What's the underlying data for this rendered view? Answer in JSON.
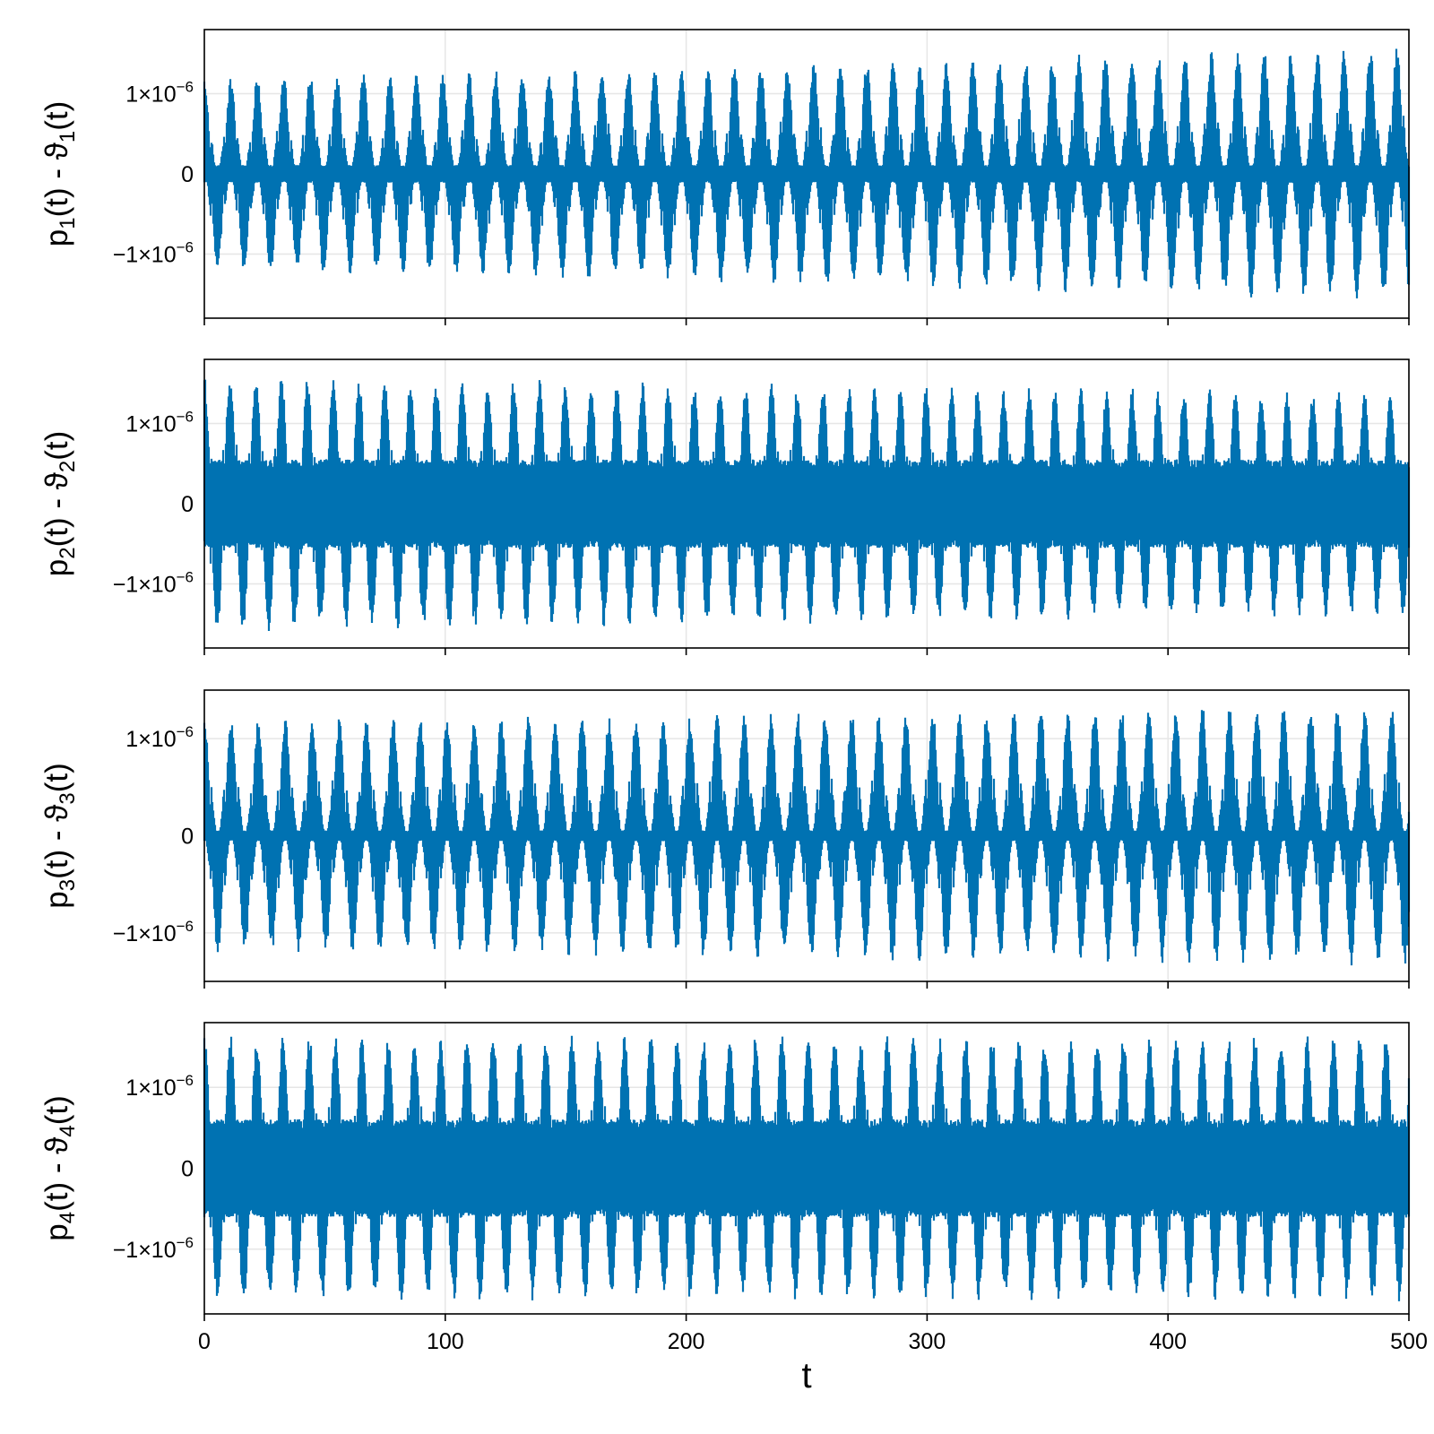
{
  "figure": {
    "background": "#ffffff",
    "line_color": "#0072b2",
    "grid_color": "#e6e6e6"
  },
  "chart_data": [
    {
      "type": "line",
      "ylabel_parts": [
        "p",
        "1",
        "(t) - ϑ",
        "1",
        "(t)"
      ],
      "xlabel": "",
      "x": [
        0,
        500
      ],
      "xlim": [
        0,
        500
      ],
      "ylim": [
        -1.8e-06,
        1.8e-06
      ],
      "xticks": [
        0,
        100,
        200,
        300,
        400,
        500
      ],
      "xtick_labels": [
        "",
        "",
        "",
        "",
        "",
        ""
      ],
      "yticks": [
        -1e-06,
        0,
        1e-06
      ],
      "ytick_labels": [
        {
          "base": "−1×10",
          "exp": "−6"
        },
        {
          "base": "0",
          "exp": ""
        },
        {
          "base": "1×10",
          "exp": "−6"
        }
      ],
      "grid": true,
      "series": [
        {
          "envelope_min_start": -1.2e-06,
          "envelope_max_start": 1.2e-06,
          "envelope_min_end": -1.6e-06,
          "envelope_max_end": 1.6e-06,
          "beat_period": 11.0,
          "inner_min": -1e-07,
          "inner_max": 1e-07
        }
      ]
    },
    {
      "type": "line",
      "ylabel_parts": [
        "p",
        "2",
        "(t) - ϑ",
        "2",
        "(t)"
      ],
      "xlabel": "",
      "x": [
        0,
        500
      ],
      "xlim": [
        0,
        500
      ],
      "ylim": [
        -1.8e-06,
        1.8e-06
      ],
      "xticks": [
        0,
        100,
        200,
        300,
        400,
        500
      ],
      "xtick_labels": [
        "",
        "",
        "",
        "",
        "",
        ""
      ],
      "yticks": [
        -1e-06,
        0,
        1e-06
      ],
      "ytick_labels": [
        {
          "base": "−1×10",
          "exp": "−6"
        },
        {
          "base": "0",
          "exp": ""
        },
        {
          "base": "1×10",
          "exp": "−6"
        }
      ],
      "grid": true,
      "series": [
        {
          "envelope_min_start": -1.6e-06,
          "envelope_max_start": 1.6e-06,
          "envelope_min_end": -1.4e-06,
          "envelope_max_end": 1.4e-06,
          "beat_period": 10.7,
          "inner_min": -5e-07,
          "inner_max": 5e-07
        }
      ]
    },
    {
      "type": "line",
      "ylabel_parts": [
        "p",
        "3",
        "(t) - ϑ",
        "3",
        "(t)"
      ],
      "xlabel": "",
      "x": [
        0,
        500
      ],
      "xlim": [
        0,
        500
      ],
      "ylim": [
        -1.5e-06,
        1.5e-06
      ],
      "xticks": [
        0,
        100,
        200,
        300,
        400,
        500
      ],
      "xtick_labels": [
        "",
        "",
        "",
        "",
        "",
        ""
      ],
      "yticks": [
        -1e-06,
        0,
        1e-06
      ],
      "ytick_labels": [
        {
          "base": "−1×10",
          "exp": "−6"
        },
        {
          "base": "0",
          "exp": ""
        },
        {
          "base": "1×10",
          "exp": "−6"
        }
      ],
      "grid": true,
      "series": [
        {
          "envelope_min_start": -1.2e-06,
          "envelope_max_start": 1.2e-06,
          "envelope_min_end": -1.35e-06,
          "envelope_max_end": 1.35e-06,
          "beat_period": 11.2,
          "inner_min": -5e-08,
          "inner_max": 5e-08
        }
      ]
    },
    {
      "type": "line",
      "ylabel_parts": [
        "p",
        "4",
        "(t) - ϑ",
        "4",
        "(t)"
      ],
      "xlabel": "t",
      "x": [
        0,
        500
      ],
      "xlim": [
        0,
        500
      ],
      "ylim": [
        -1.8e-06,
        1.8e-06
      ],
      "xticks": [
        0,
        100,
        200,
        300,
        400,
        500
      ],
      "xtick_labels": [
        "0",
        "100",
        "200",
        "300",
        "400",
        "500"
      ],
      "yticks": [
        -1e-06,
        0,
        1e-06
      ],
      "ytick_labels": [
        {
          "base": "−1×10",
          "exp": "−6"
        },
        {
          "base": "0",
          "exp": ""
        },
        {
          "base": "1×10",
          "exp": "−6"
        }
      ],
      "grid": true,
      "series": [
        {
          "envelope_min_start": -1.65e-06,
          "envelope_max_start": 1.65e-06,
          "envelope_min_end": -1.65e-06,
          "envelope_max_end": 1.65e-06,
          "beat_period": 10.9,
          "inner_min": -5.5e-07,
          "inner_max": 5.5e-07
        }
      ]
    }
  ]
}
